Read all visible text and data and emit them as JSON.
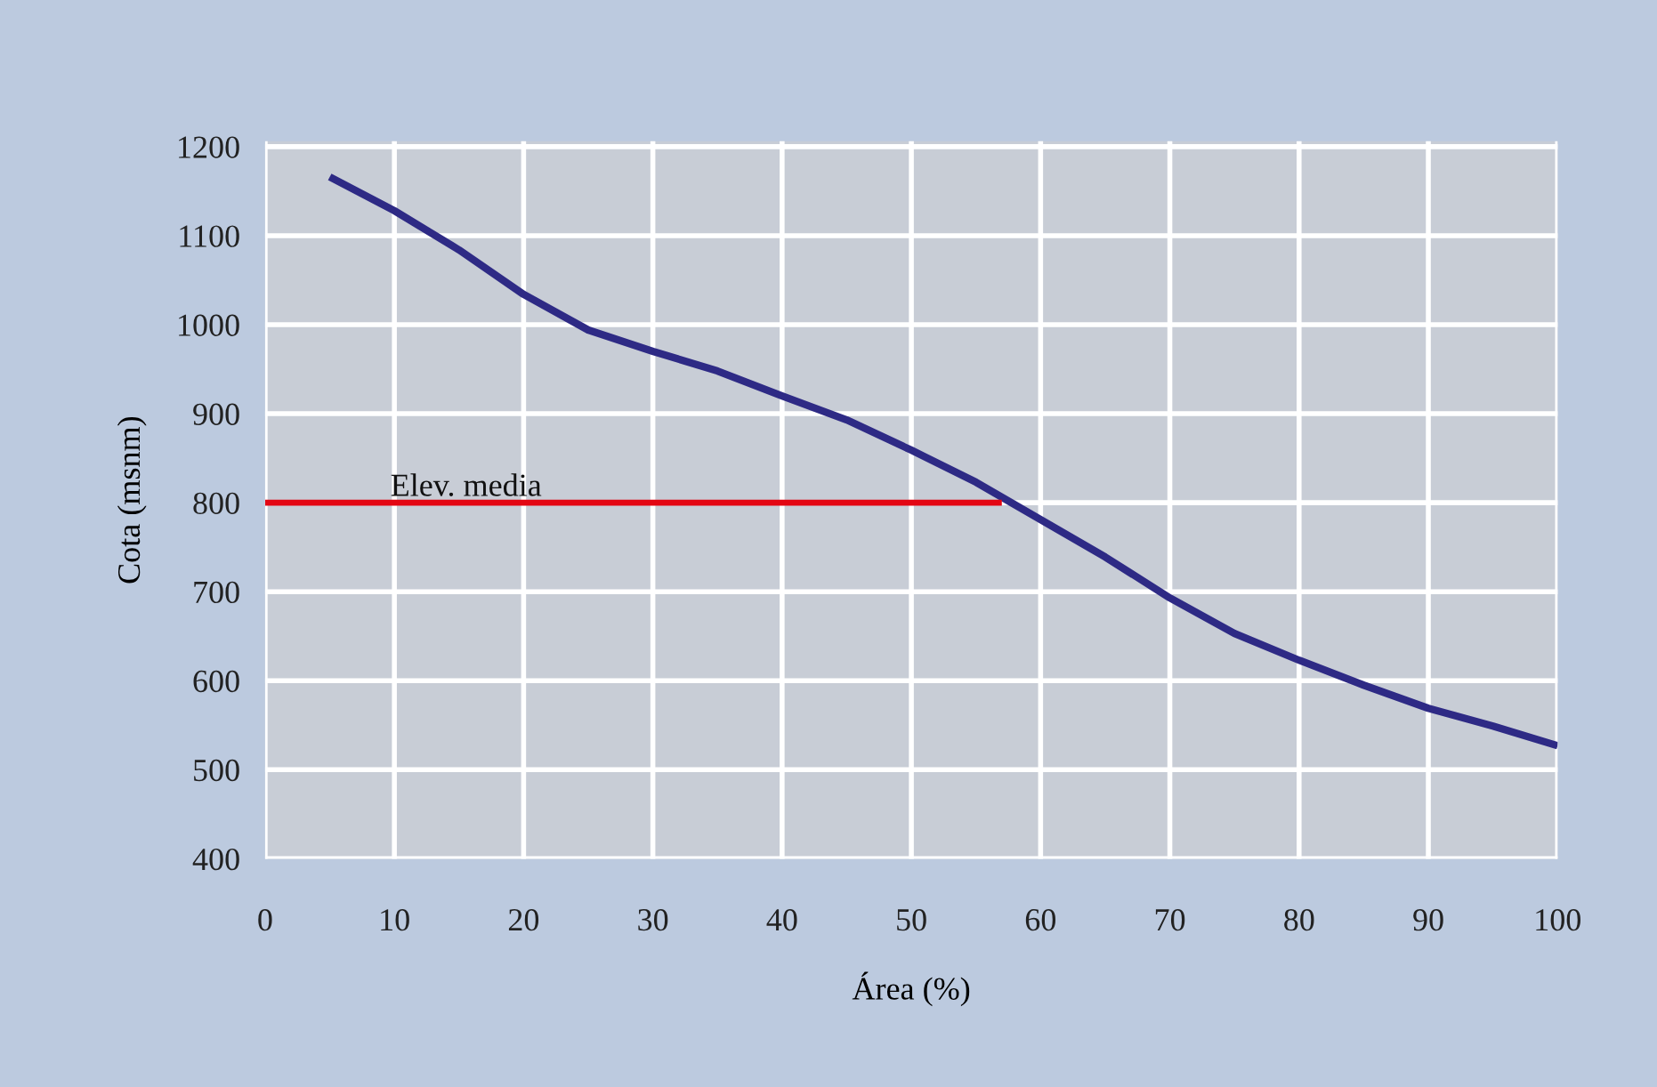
{
  "chart_data": {
    "type": "line",
    "xlabel": "Área (%)",
    "ylabel": "Cota (msnm)",
    "xlim": [
      0,
      100
    ],
    "ylim": [
      400,
      1206
    ],
    "xticks": [
      0,
      10,
      20,
      30,
      40,
      50,
      60,
      70,
      80,
      90,
      100
    ],
    "yticks": [
      400,
      500,
      600,
      700,
      800,
      900,
      1000,
      1100,
      1200
    ],
    "grid": true,
    "legend": false,
    "marker": "none",
    "line_style": "solid",
    "series": [
      {
        "color": "#2e2a85",
        "x": [
          5,
          10,
          15,
          20,
          25,
          30,
          35,
          40,
          45,
          50,
          55,
          60,
          65,
          70,
          75,
          80,
          85,
          90,
          95,
          100
        ],
        "values": [
          1166,
          1128,
          1084,
          1034,
          994,
          970,
          948,
          920,
          893,
          859,
          823,
          781,
          739,
          693,
          653,
          623,
          595,
          569,
          549,
          527
        ]
      },
      {
        "name": "Elev. media",
        "color": "#e30613",
        "x": [
          0,
          57
        ],
        "values": [
          800,
          800
        ]
      }
    ]
  }
}
